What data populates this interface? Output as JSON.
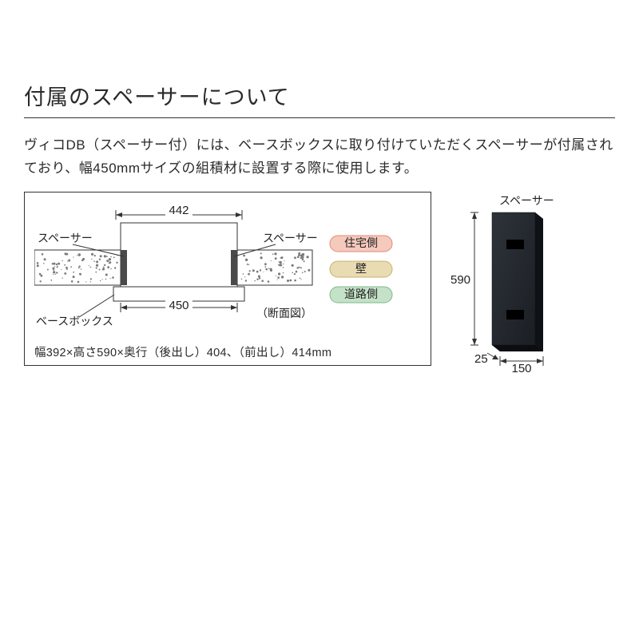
{
  "header": {
    "title": "付属のスペーサーについて"
  },
  "description": "ヴィコDB（スペーサー付）には、ベースボックスに取り付けていただくスペーサーが付属されており、幅450mmサイズの組積材に設置する際に使用します。",
  "cross_section": {
    "width_outer_dim": "442",
    "opening_dim": "450",
    "spacer_label_left": "スペーサー",
    "spacer_label_right": "スペーサー",
    "basebox_label": "ベースボックス",
    "caption_label": "（断面図）",
    "size_line": "幅392×高さ590×奥行（後出し）404、（前出し）414mm",
    "legend": {
      "house": {
        "text": "住宅側",
        "fill": "#f6c9bd",
        "stroke": "#e08a74"
      },
      "wall": {
        "text": "壁",
        "fill": "#e9dbb2",
        "stroke": "#c7b36f"
      },
      "road": {
        "text": "道路側",
        "fill": "#c4e2c7",
        "stroke": "#7fb88b"
      }
    },
    "colors": {
      "frame": "#333333",
      "wall_fill": "#ffffff",
      "spacer_fill": "#4a4a4a",
      "speckle": "#7a7a7a"
    }
  },
  "spacer_panel": {
    "title": "スペーサー",
    "height_dim": "590",
    "width_dim": "150",
    "depth_dim": "25",
    "colors": {
      "panel_top": "#2e333a",
      "panel_bot": "#1b1f24",
      "cut_fill": "#000000"
    }
  }
}
